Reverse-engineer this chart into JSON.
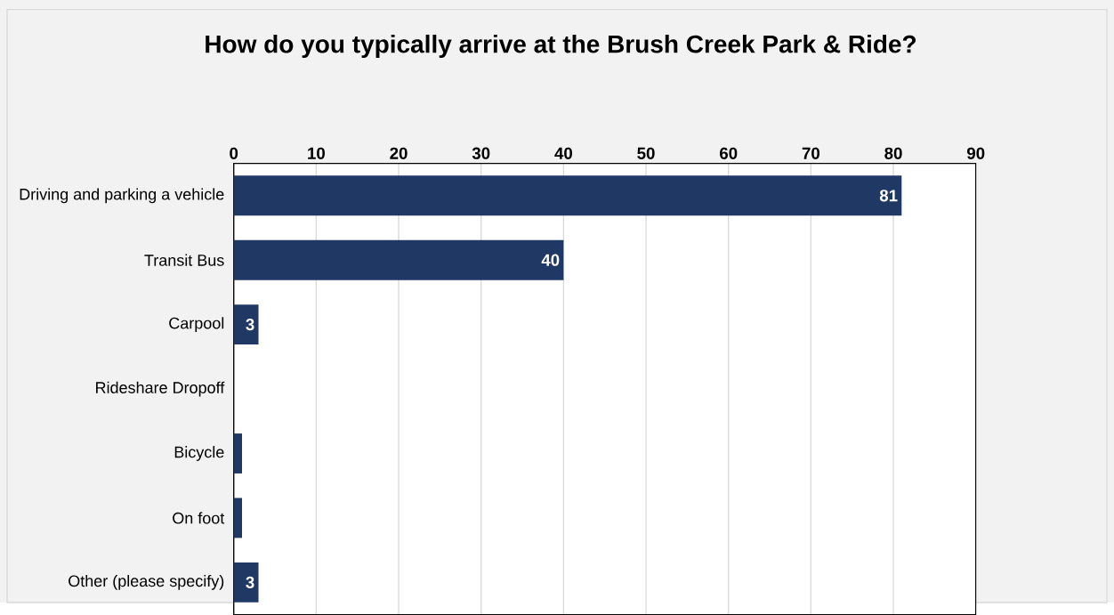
{
  "chart_data": {
    "type": "bar",
    "orientation": "horizontal",
    "title": "How do you typically arrive at the Brush Creek Park & Ride?",
    "categories": [
      "Driving and parking a vehicle",
      "Transit Bus",
      "Carpool",
      "Rideshare Dropoff",
      "Bicycle",
      "On foot",
      "Other (please specify)"
    ],
    "values": [
      81,
      40,
      3,
      0,
      1,
      1,
      3
    ],
    "value_labels": [
      "81",
      "40",
      "3",
      null,
      null,
      null,
      "3"
    ],
    "color": "#203864",
    "xlim": [
      0,
      90
    ],
    "xticks": [
      0,
      10,
      20,
      30,
      40,
      50,
      60,
      70,
      80,
      90
    ],
    "grid": "x"
  }
}
